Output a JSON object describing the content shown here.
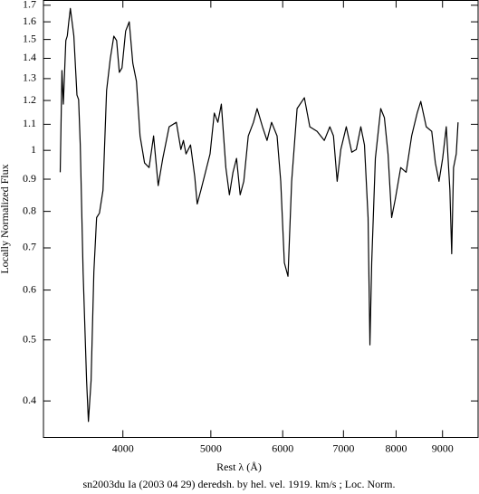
{
  "chart_data": {
    "type": "line",
    "title": "sn2003du Ia (2003 04 29) deredsh. by hel. vel.  1919. km/s ;  Loc. Norm.",
    "x_label": "Rest λ (Å)",
    "y_label": "Locally Normalized Flux",
    "x_log": true,
    "y_log": true,
    "xlim": [
      3270,
      9850
    ],
    "ylim": [
      0.35,
      1.73
    ],
    "xticks": [
      4000,
      5000,
      6000,
      7000,
      8000,
      9000
    ],
    "yticks": [
      0.4,
      0.5,
      0.6,
      0.7,
      0.8,
      0.9,
      1,
      1.1,
      1.2,
      1.3,
      1.4,
      1.5,
      1.6,
      1.7
    ],
    "series": [
      {
        "color": "#000000",
        "x": [
          3412,
          3427,
          3439,
          3461,
          3474,
          3487,
          3501,
          3532,
          3560,
          3575,
          3590,
          3616,
          3648,
          3665,
          3690,
          3716,
          3742,
          3769,
          3803,
          3838,
          3874,
          3909,
          3937,
          3964,
          3991,
          4028,
          4065,
          4102,
          4140,
          4178,
          4226,
          4275,
          4324,
          4375,
          4426,
          4498,
          4581,
          4634,
          4664,
          4695,
          4749,
          4800,
          4830,
          4875,
          4932,
          4990,
          5044,
          5090,
          5135,
          5194,
          5241,
          5289,
          5337,
          5386,
          5436,
          5498,
          5571,
          5623,
          5700,
          5766,
          5833,
          5915,
          5970,
          6025,
          6081,
          6138,
          6223,
          6339,
          6427,
          6546,
          6668,
          6762,
          6825,
          6889,
          6953,
          7050,
          7149,
          7231,
          7315,
          7383,
          7451,
          7486,
          7520,
          7590,
          7694,
          7766,
          7838,
          7910,
          7983,
          8094,
          8207,
          8322,
          8439,
          8517,
          8636,
          8757,
          8838,
          8920,
          9003,
          9086,
          9170,
          9212,
          9255,
          9319,
          9362
        ],
        "values": [
          0.923,
          1.339,
          1.184,
          1.494,
          1.52,
          1.6,
          1.68,
          1.52,
          1.224,
          1.204,
          1.02,
          0.641,
          0.431,
          0.371,
          0.431,
          0.641,
          0.782,
          0.795,
          0.864,
          1.245,
          1.398,
          1.518,
          1.494,
          1.33,
          1.352,
          1.547,
          1.6,
          1.375,
          1.287,
          1.054,
          0.955,
          0.939,
          1.054,
          0.879,
          0.971,
          1.09,
          1.108,
          1.003,
          1.037,
          0.987,
          1.02,
          0.908,
          0.822,
          0.864,
          0.923,
          0.987,
          1.146,
          1.108,
          1.184,
          0.939,
          0.85,
          0.923,
          0.971,
          0.85,
          0.893,
          1.054,
          1.108,
          1.165,
          1.09,
          1.037,
          1.108,
          1.054,
          0.893,
          0.663,
          0.631,
          0.893,
          1.165,
          1.212,
          1.09,
          1.072,
          1.037,
          1.09,
          1.054,
          0.893,
          1.003,
          1.09,
          0.993,
          1.003,
          1.09,
          1.02,
          0.782,
          0.491,
          0.663,
          0.971,
          1.165,
          1.127,
          0.987,
          0.782,
          0.836,
          0.939,
          0.923,
          1.054,
          1.146,
          1.196,
          1.09,
          1.072,
          0.955,
          0.893,
          0.971,
          1.09,
          0.864,
          0.685,
          0.939,
          0.987,
          1.108
        ]
      }
    ]
  }
}
